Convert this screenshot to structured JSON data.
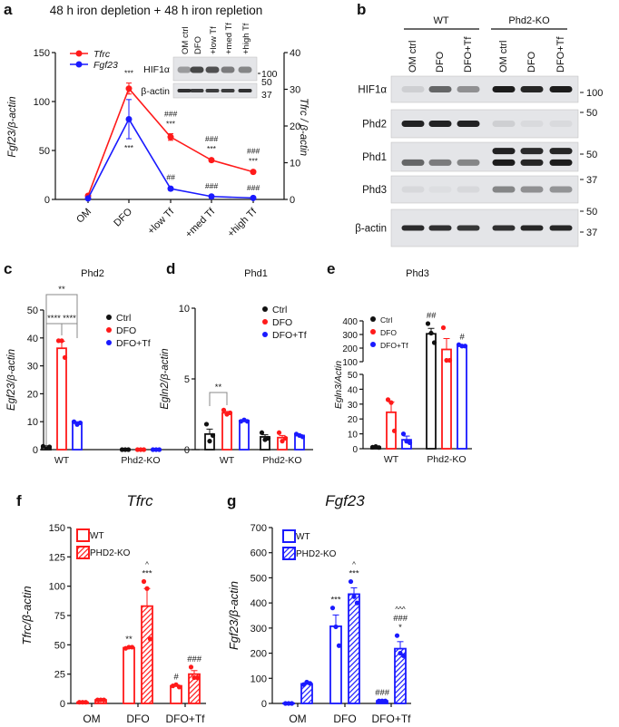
{
  "panel_labels": [
    "a",
    "b",
    "c",
    "d",
    "e",
    "f",
    "g"
  ],
  "colors": {
    "red": "#ff1a1a",
    "blue": "#1a1aff",
    "black": "#111111"
  },
  "blot_b": {
    "groups": [
      "WT",
      "Phd2-KO"
    ],
    "lanes": [
      "OM ctrl",
      "DFO",
      "DFO+Tf",
      "OM ctrl",
      "DFO",
      "DFO+Tf"
    ],
    "rows": [
      {
        "label": "HIF1α",
        "mw": [
          "100"
        ],
        "bands": [
          [
            0.1,
            0.6,
            0.4,
            0.95,
            0.9,
            0.95
          ]
        ]
      },
      {
        "label": "Phd2",
        "mw": [
          "50"
        ],
        "bands": [
          [
            0.92,
            0.92,
            0.92,
            0.1,
            0.05,
            0.05
          ]
        ]
      },
      {
        "label": "Phd1",
        "mw": [
          "50"
        ],
        "bands": [
          [
            0,
            0,
            0,
            0.92,
            0.88,
            0.9
          ],
          [
            0.6,
            0.5,
            0.45,
            0.95,
            0.9,
            0.95
          ]
        ]
      },
      {
        "label": "Phd3",
        "mw": [
          "37"
        ],
        "bands": [
          [
            0.06,
            0.03,
            0.06,
            0.45,
            0.4,
            0.38
          ]
        ]
      },
      {
        "label": "β-actin",
        "mw": [
          "50",
          "37"
        ],
        "bands": [
          [
            0.88,
            0.85,
            0.82,
            0.85,
            0.9,
            0.9
          ]
        ]
      }
    ]
  },
  "chart_data": [
    {
      "id": "a",
      "type": "line",
      "title": "48 h iron depletion + 48 h iron repletion",
      "categories": [
        "OM",
        "DFO",
        "+low Tf",
        "+med Tf",
        "+high Tf"
      ],
      "ylabel_left": "Fgf23/β-actin",
      "ylabel_right": "Tfrc / β-actin",
      "ylim_left": [
        0,
        150
      ],
      "yticks_left": [
        0,
        50,
        100,
        150
      ],
      "ylim_right": [
        0,
        40
      ],
      "yticks_right": [
        0,
        10,
        20,
        30,
        40
      ],
      "series": [
        {
          "name": "Tfrc",
          "color": "#ff1a1a",
          "axis": "right",
          "values": [
            1,
            30.2,
            17,
            10.7,
            7.5
          ],
          "errors": [
            0.2,
            1.5,
            0.9,
            0.4,
            0.3
          ],
          "annotations": [
            [],
            [
              "***"
            ],
            [
              "###",
              "***"
            ],
            [
              "###",
              "***"
            ],
            [
              "###",
              "***"
            ]
          ]
        },
        {
          "name": "Fgf23",
          "color": "#1a1aff",
          "axis": "left",
          "values": [
            1,
            82,
            11,
            3,
            1.5
          ],
          "errors": [
            0.3,
            20,
            1.5,
            0.5,
            0.3
          ],
          "annotations": [
            [],
            [
              "***"
            ],
            [
              "##"
            ],
            [
              "###"
            ],
            [
              "###"
            ]
          ]
        }
      ],
      "inset_blot": {
        "lanes": [
          "OM ctrl",
          "DFO",
          "+low Tf",
          "+med Tf",
          "+high Tf"
        ],
        "rows": [
          {
            "label": "HIF1α",
            "mw": [
              "100"
            ],
            "bands": [
              0.35,
              0.75,
              0.7,
              0.5,
              0.45
            ]
          },
          {
            "label": "β-actin",
            "mw": [
              "50",
              "37"
            ],
            "bands": [
              0.85,
              0.8,
              0.8,
              0.8,
              0.85
            ]
          }
        ]
      }
    },
    {
      "id": "c",
      "type": "bar",
      "title": "Phd2",
      "ylabel": "Egf23/β-actin",
      "ylim": [
        0,
        50
      ],
      "yticks": [
        0,
        10,
        20,
        30,
        40,
        50
      ],
      "categories": [
        "WT",
        "Phd2-KO"
      ],
      "series": [
        {
          "name": "Ctrl",
          "color": "#111111",
          "values": [
            1,
            0
          ],
          "errors": [
            0.2,
            0
          ],
          "points": [
            [
              1.2,
              0.8,
              1.0
            ],
            [
              0,
              0,
              0
            ]
          ]
        },
        {
          "name": "DFO",
          "color": "#ff1a1a",
          "values": [
            36.3,
            0
          ],
          "errors": [
            2.5,
            0
          ],
          "points": [
            [
              39,
              39,
              33
            ],
            [
              0,
              0,
              0
            ]
          ]
        },
        {
          "name": "DFO+Tf",
          "color": "#1a1aff",
          "values": [
            9.5,
            0
          ],
          "errors": [
            0.5,
            0
          ],
          "points": [
            [
              10,
              9,
              9.6
            ],
            [
              0,
              0,
              0
            ]
          ]
        }
      ],
      "brackets": [
        {
          "from": [
            0,
            0
          ],
          "to": [
            0,
            1
          ],
          "text": "****"
        },
        {
          "from": [
            0,
            1
          ],
          "to": [
            0,
            2
          ],
          "text": "****"
        },
        {
          "from": [
            0,
            0
          ],
          "to": [
            0,
            2
          ],
          "text": "**"
        }
      ],
      "annotations": []
    },
    {
      "id": "d",
      "type": "bar",
      "title": "Phd1",
      "ylabel": "Egln2/β-actin",
      "ylim": [
        0,
        10
      ],
      "yticks": [
        0,
        5,
        10
      ],
      "categories": [
        "WT",
        "Phd2-KO"
      ],
      "series": [
        {
          "name": "Ctrl",
          "color": "#111111",
          "values": [
            1.1,
            0.9
          ],
          "errors": [
            0.35,
            0.15
          ],
          "points": [
            [
              1.8,
              0.6,
              1.0
            ],
            [
              1.2,
              0.7,
              0.8
            ]
          ]
        },
        {
          "name": "DFO",
          "color": "#ff1a1a",
          "values": [
            2.6,
            0.85
          ],
          "errors": [
            0.1,
            0.15
          ],
          "points": [
            [
              2.8,
              2.5,
              2.6
            ],
            [
              1.2,
              0.6,
              0.8
            ]
          ]
        },
        {
          "name": "DFO+Tf",
          "color": "#1a1aff",
          "values": [
            2.05,
            1.0
          ],
          "errors": [
            0.05,
            0.06
          ],
          "points": [
            [
              2.0,
              2.1,
              2.0
            ],
            [
              1.1,
              1.0,
              0.9
            ]
          ]
        }
      ],
      "brackets": [
        {
          "from": [
            0,
            0
          ],
          "to": [
            0,
            1
          ],
          "text": "**"
        }
      ],
      "annotations": []
    },
    {
      "id": "e",
      "type": "bar",
      "title": "Phd3",
      "ylabel": "Egln3/Actin",
      "ylim": [
        0,
        400
      ],
      "axis_break": [
        50,
        100
      ],
      "yticks": [
        0,
        10,
        20,
        30,
        40,
        50,
        100,
        200,
        300,
        400
      ],
      "categories": [
        "WT",
        "Phd2-KO"
      ],
      "series": [
        {
          "name": "Ctrl",
          "color": "#111111",
          "values": [
            1.1,
            305
          ],
          "errors": [
            0.3,
            40
          ],
          "points": [
            [
              1.0,
              1.5,
              0.8
            ],
            [
              380,
              310,
              240
            ]
          ]
        },
        {
          "name": "DFO",
          "color": "#ff1a1a",
          "values": [
            24.5,
            190
          ],
          "errors": [
            7,
            80
          ],
          "points": [
            [
              33,
              31,
              12
            ],
            [
              350,
              110,
              110
            ]
          ]
        },
        {
          "name": "DFO+Tf",
          "color": "#1a1aff",
          "values": [
            6,
            215
          ],
          "errors": [
            2.5,
            5
          ],
          "points": [
            [
              10,
              5,
              4
            ],
            [
              225,
              215,
              215
            ]
          ]
        }
      ],
      "brackets": [],
      "annotations": [
        {
          "group": 1,
          "series": 0,
          "lines": [
            "##"
          ]
        },
        {
          "group": 1,
          "series": 2,
          "lines": [
            "#"
          ]
        }
      ]
    },
    {
      "id": "f",
      "type": "bar",
      "title": "Tfrc",
      "ylabel": "Tfrc/β-actin",
      "ylim": [
        0,
        150
      ],
      "yticks": [
        0,
        25,
        50,
        75,
        100,
        125,
        150
      ],
      "categories": [
        "OM",
        "DFO",
        "DFO+Tf"
      ],
      "series": [
        {
          "name": "WT",
          "color": "#ff1a1a",
          "hatched": false,
          "values": [
            1,
            47.5,
            15
          ],
          "errors": [
            0.1,
            0.5,
            0.8
          ],
          "points": [
            [
              1,
              1,
              1
            ],
            [
              47,
              48,
              48
            ],
            [
              15,
              16,
              14
            ]
          ]
        },
        {
          "name": "PHD2-KO",
          "color": "#ff1a1a",
          "hatched": true,
          "values": [
            3,
            83,
            25
          ],
          "errors": [
            0.2,
            15,
            3
          ],
          "points": [
            [
              3,
              3,
              3
            ],
            [
              104,
              98,
              55
            ],
            [
              31,
              22,
              22
            ]
          ]
        }
      ],
      "brackets": [],
      "annotations": [
        {
          "group": 1,
          "series": 0,
          "lines": [
            "**"
          ]
        },
        {
          "group": 1,
          "series": 1,
          "lines": [
            "^",
            "***"
          ]
        },
        {
          "group": 2,
          "series": 0,
          "lines": [
            "#"
          ]
        },
        {
          "group": 2,
          "series": 1,
          "lines": [
            "###"
          ]
        }
      ]
    },
    {
      "id": "g",
      "type": "bar",
      "title": "Fgf23",
      "ylabel": "Fgf23/β-actin",
      "ylim": [
        0,
        700
      ],
      "yticks": [
        0,
        100,
        200,
        300,
        400,
        500,
        600,
        700
      ],
      "categories": [
        "OM",
        "DFO",
        "DFO+Tf"
      ],
      "series": [
        {
          "name": "WT",
          "color": "#1a1aff",
          "hatched": false,
          "values": [
            1,
            307,
            10
          ],
          "errors": [
            0.2,
            45,
            1
          ],
          "points": [
            [
              0,
              0,
              0
            ],
            [
              380,
              305,
              230
            ],
            [
              10,
              10,
              10
            ]
          ]
        },
        {
          "name": "PHD2-KO",
          "color": "#1a1aff",
          "hatched": true,
          "values": [
            78,
            435,
            218
          ],
          "errors": [
            4,
            25,
            28
          ],
          "points": [
            [
              75,
              85,
              80
            ],
            [
              485,
              425,
              400
            ],
            [
              270,
              200,
              190
            ]
          ]
        }
      ],
      "brackets": [],
      "annotations": [
        {
          "group": 1,
          "series": 0,
          "lines": [
            "***"
          ]
        },
        {
          "group": 1,
          "series": 1,
          "lines": [
            "^",
            "***"
          ]
        },
        {
          "group": 2,
          "series": 0,
          "lines": [
            "###"
          ]
        },
        {
          "group": 2,
          "series": 1,
          "lines": [
            "^^^",
            "###",
            "*"
          ]
        }
      ]
    }
  ]
}
